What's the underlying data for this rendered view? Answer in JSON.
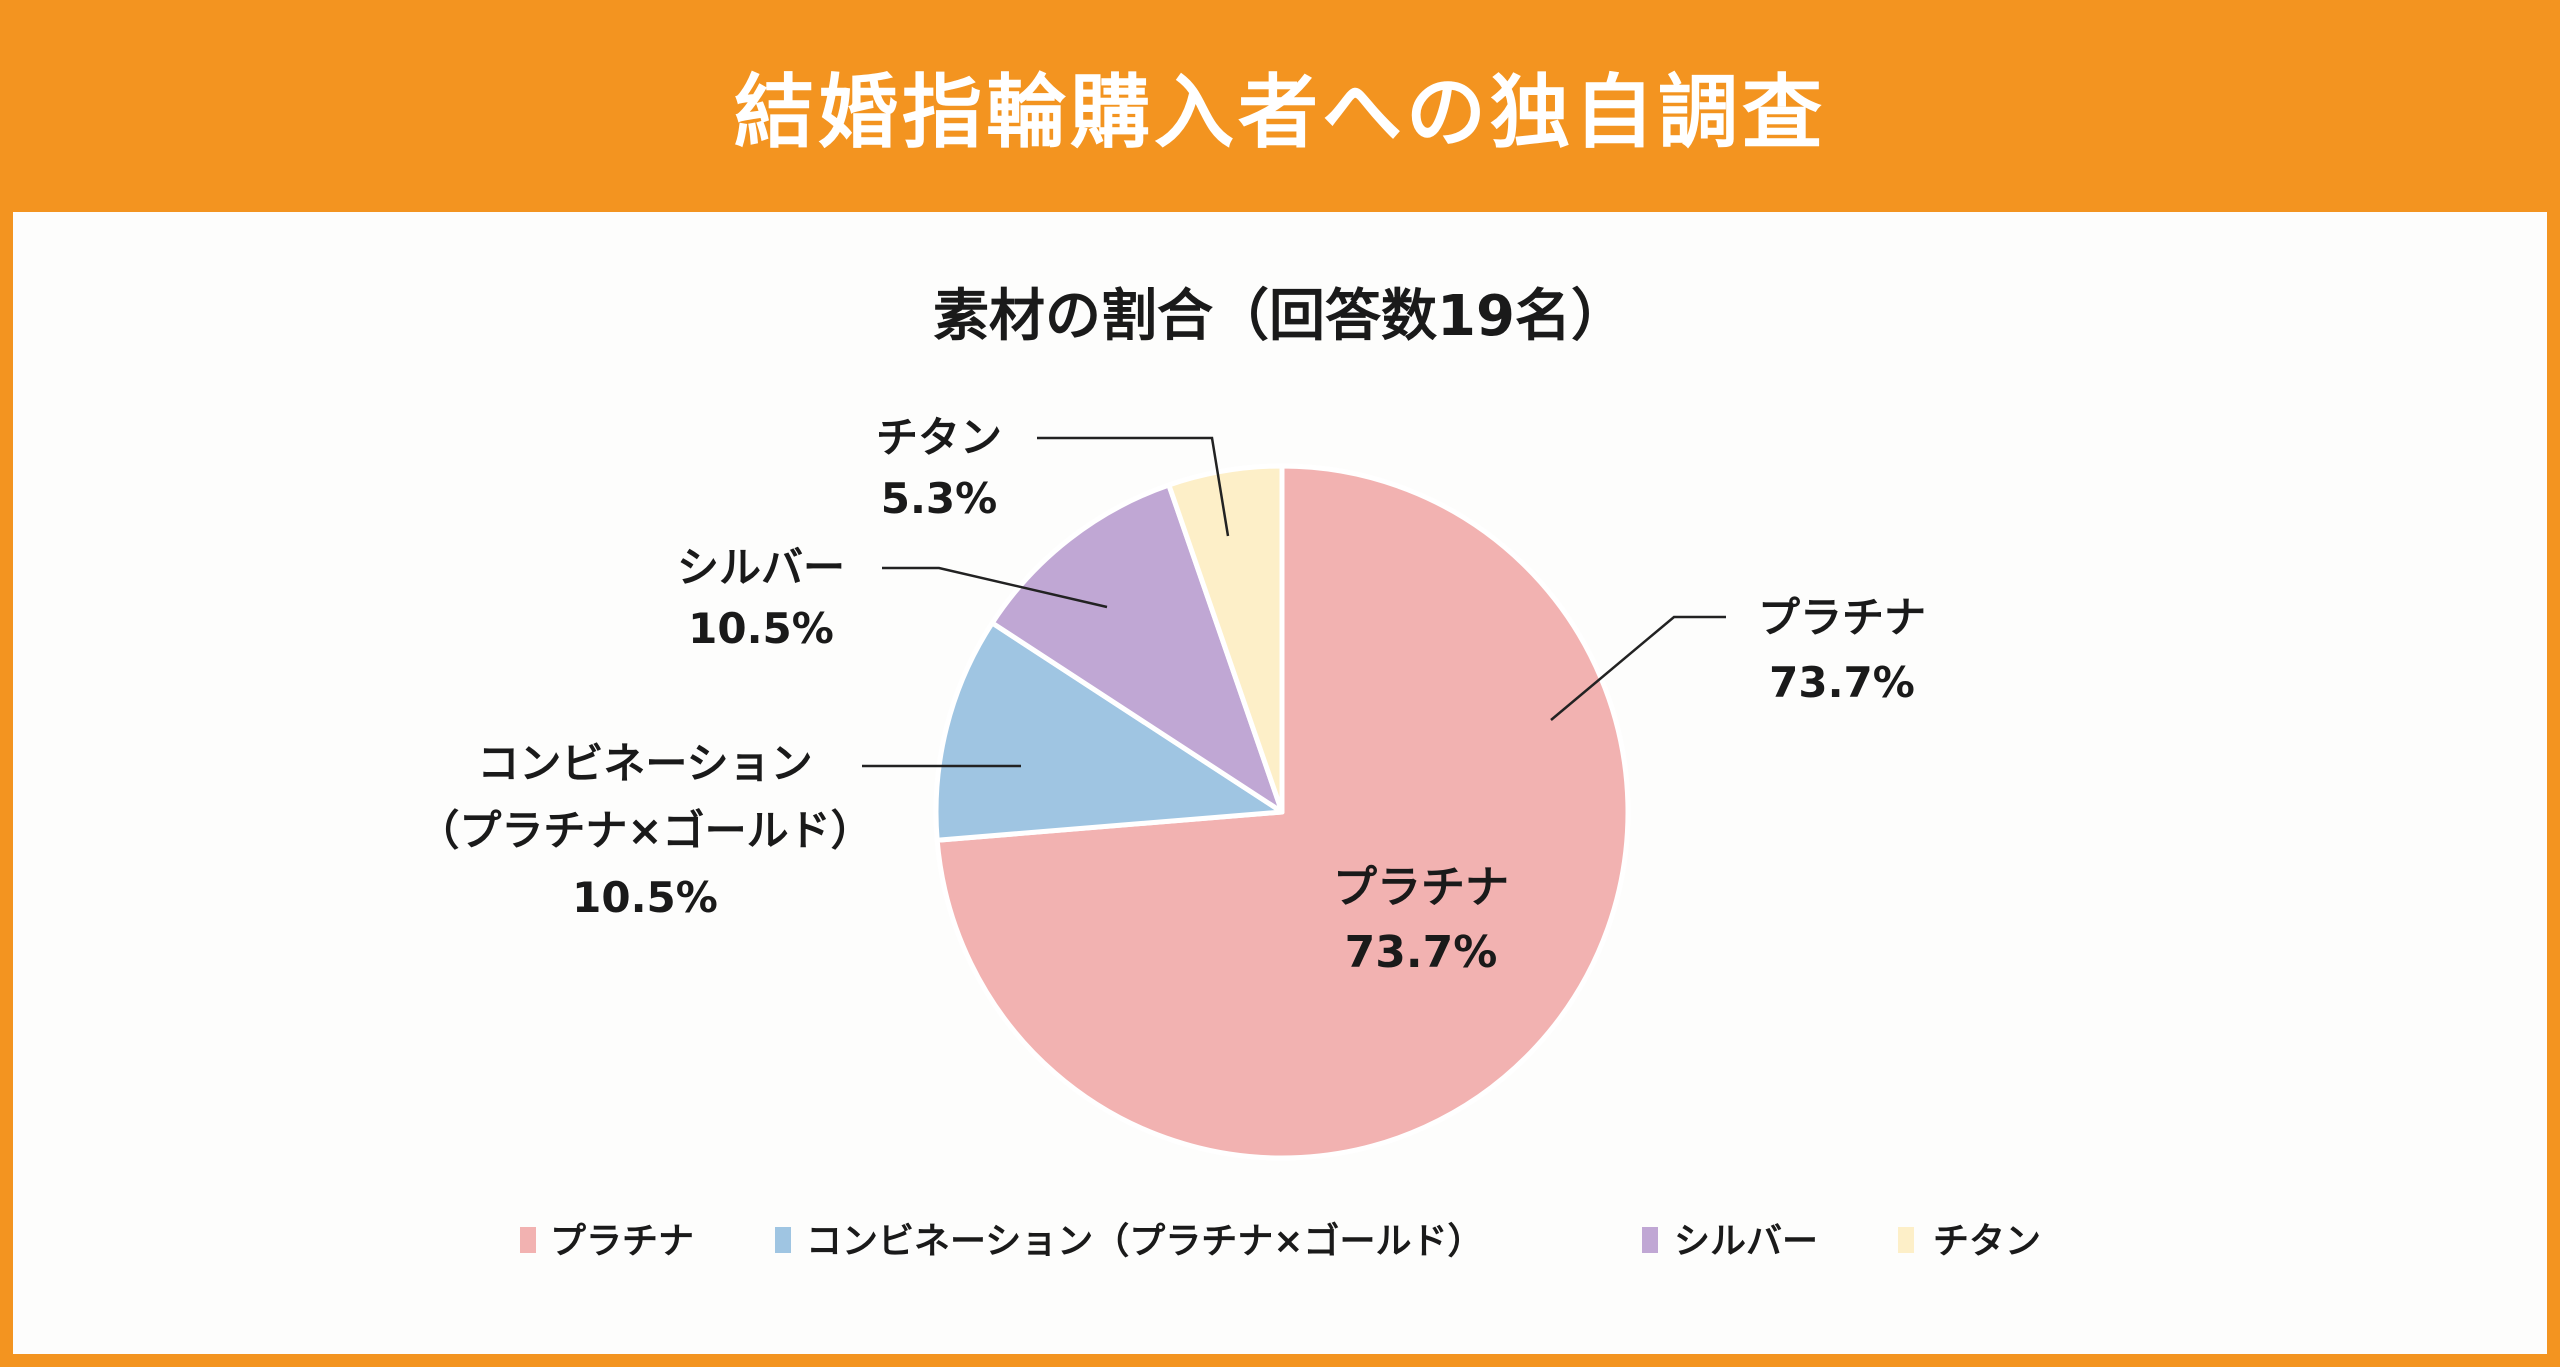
{
  "header": {
    "title": "結婚指輪購入者への独自調査"
  },
  "colors": {
    "background": "#f39420",
    "panel": "#fdfdfc"
  },
  "chart_data": {
    "type": "pie",
    "title": "素材の割合（回答数19名）",
    "start_angle": "12 o'clock",
    "direction": "clockwise",
    "legend_position": "bottom",
    "slices": [
      {
        "label": "プラチナ",
        "legend": "プラチナ",
        "callout_lines": [
          "プラチナ"
        ],
        "value": 73.7,
        "value_label": "73.7%",
        "color": "#f2b2b1"
      },
      {
        "label": "コンビネーション（プラチナ×ゴールド）",
        "legend": "コンビネーション（プラチナ×ゴールド）",
        "callout_lines": [
          "コンビネーション",
          "（プラチナ×ゴールド）"
        ],
        "value": 10.5,
        "value_label": "10.5%",
        "color": "#9fc5e2"
      },
      {
        "label": "シルバー",
        "legend": "シルバー",
        "callout_lines": [
          "シルバー"
        ],
        "value": 10.5,
        "value_label": "10.5%",
        "color": "#c0a7d4"
      },
      {
        "label": "チタン",
        "legend": "チタン",
        "callout_lines": [
          "チタン"
        ],
        "value": 5.3,
        "value_label": "5.3%",
        "color": "#fdefc8"
      }
    ],
    "inner_label": {
      "label": "プラチナ",
      "value_label": "73.7%"
    }
  }
}
